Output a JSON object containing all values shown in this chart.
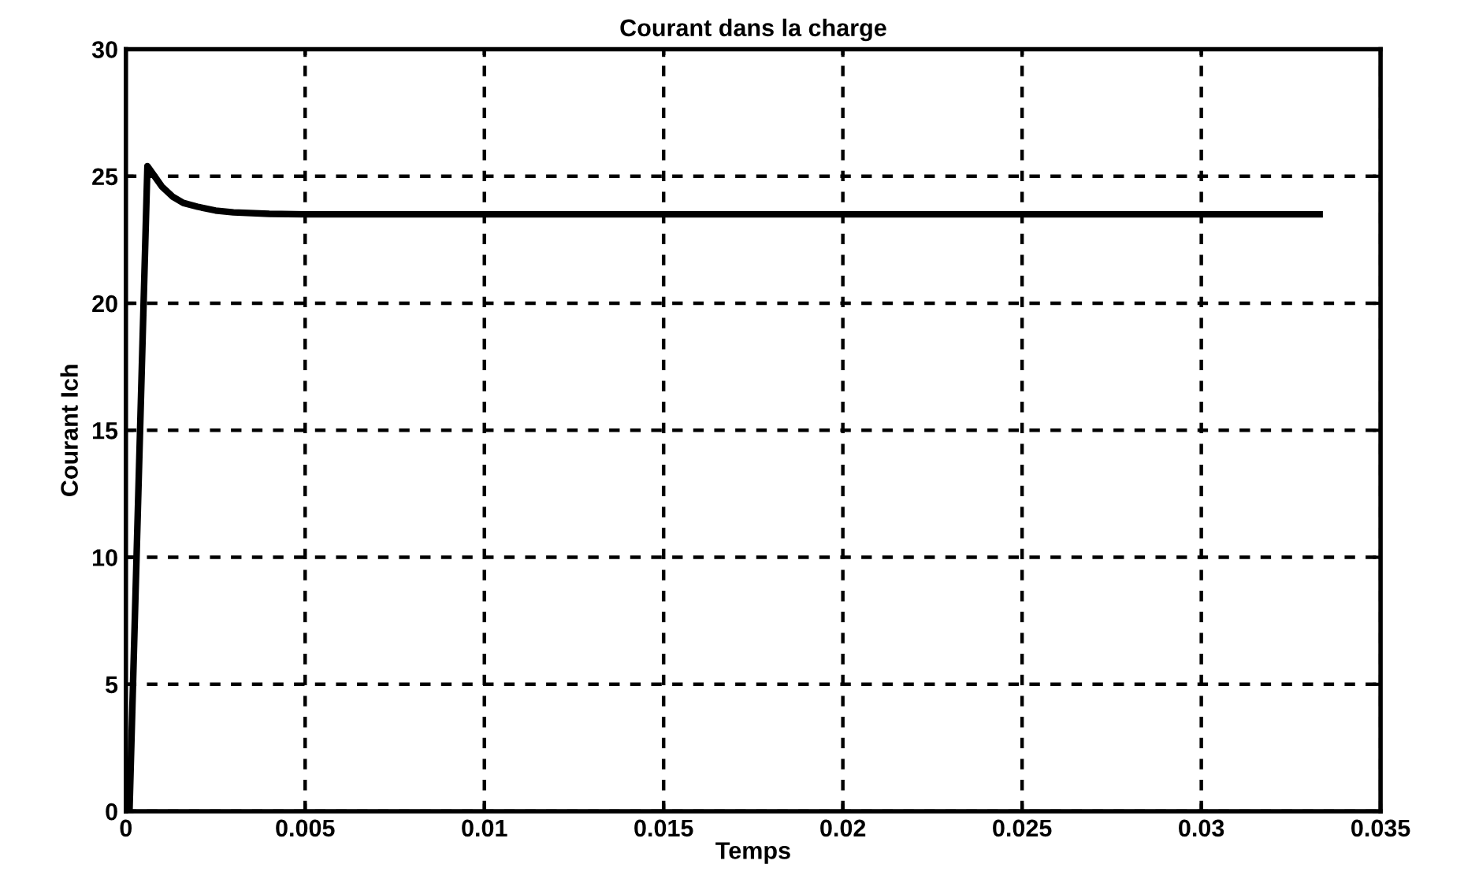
{
  "chart_data": {
    "type": "line",
    "title": "Courant dans la charge",
    "xlabel": "Temps",
    "ylabel": "Courant Ich",
    "x": [
      0,
      0.0001,
      0.0006,
      0.0008,
      0.001,
      0.0013,
      0.0016,
      0.002,
      0.0025,
      0.003,
      0.004,
      0.005,
      0.01,
      0.02,
      0.03,
      0.0333
    ],
    "series": [
      {
        "color": "#000000",
        "values": [
          0,
          0,
          25.4,
          25.0,
          24.6,
          24.2,
          23.95,
          23.8,
          23.65,
          23.58,
          23.52,
          23.5,
          23.5,
          23.5,
          23.5,
          23.5
        ]
      }
    ],
    "xlim": [
      0,
      0.035
    ],
    "ylim": [
      0,
      30
    ],
    "xticks": [
      0,
      0.005,
      0.01,
      0.015,
      0.02,
      0.025,
      0.03,
      0.035
    ],
    "yticks": [
      0,
      5,
      10,
      15,
      20,
      25,
      30
    ],
    "grid": true,
    "line_style": "solid",
    "marker": "none",
    "legend": false
  }
}
